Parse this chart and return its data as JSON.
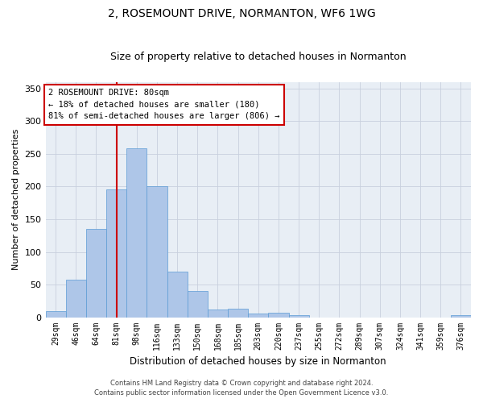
{
  "title": "2, ROSEMOUNT DRIVE, NORMANTON, WF6 1WG",
  "subtitle": "Size of property relative to detached houses in Normanton",
  "xlabel": "Distribution of detached houses by size in Normanton",
  "ylabel": "Number of detached properties",
  "categories": [
    "29sqm",
    "46sqm",
    "64sqm",
    "81sqm",
    "98sqm",
    "116sqm",
    "133sqm",
    "150sqm",
    "168sqm",
    "185sqm",
    "203sqm",
    "220sqm",
    "237sqm",
    "255sqm",
    "272sqm",
    "289sqm",
    "307sqm",
    "324sqm",
    "341sqm",
    "359sqm",
    "376sqm"
  ],
  "values": [
    9,
    57,
    135,
    196,
    258,
    200,
    70,
    40,
    12,
    13,
    6,
    7,
    3,
    0,
    0,
    0,
    0,
    0,
    0,
    0,
    3
  ],
  "bar_color": "#aec6e8",
  "bar_edge_color": "#5b9bd5",
  "annotation_line_idx": 3,
  "annotation_line_color": "#cc0000",
  "annotation_text_line1": "2 ROSEMOUNT DRIVE: 80sqm",
  "annotation_text_line2": "← 18% of detached houses are smaller (180)",
  "annotation_text_line3": "81% of semi-detached houses are larger (806) →",
  "annotation_box_color": "#cc0000",
  "background_color": "#ffffff",
  "plot_bg_color": "#e8eef5",
  "grid_color": "#c8d0de",
  "ylim": [
    0,
    360
  ],
  "yticks": [
    0,
    50,
    100,
    150,
    200,
    250,
    300,
    350
  ],
  "footer_line1": "Contains HM Land Registry data © Crown copyright and database right 2024.",
  "footer_line2": "Contains public sector information licensed under the Open Government Licence v3.0.",
  "title_fontsize": 10,
  "subtitle_fontsize": 9,
  "ylabel_fontsize": 8,
  "xtick_fontsize": 7,
  "ytick_fontsize": 8,
  "xlabel_fontsize": 8.5,
  "footer_fontsize": 6,
  "annot_fontsize": 7.5
}
